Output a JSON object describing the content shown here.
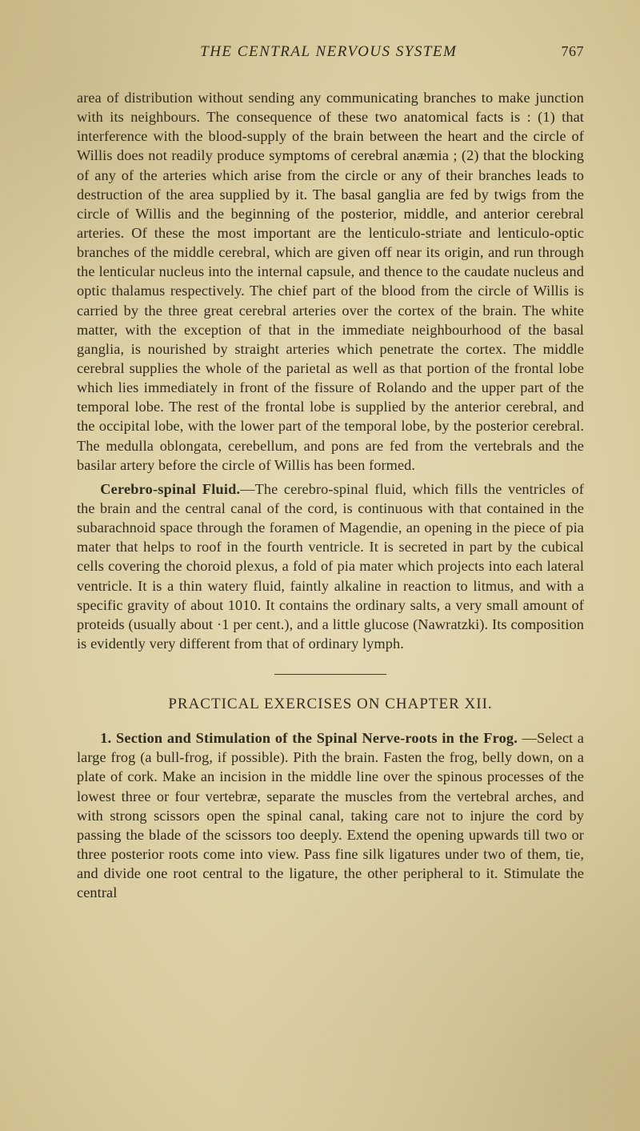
{
  "page": {
    "runningTitle": "THE CENTRAL NERVOUS SYSTEM",
    "pageNumber": "767",
    "paragraph1": "area of distribution without sending any communicating branches to make junction with its neighbours. The consequence of these two anatomical facts is : (1) that interference with the blood-supply of the brain between the heart and the circle of Willis does not readily produce symptoms of cerebral anæmia ; (2) that the blocking of any of the arteries which arise from the circle or any of their branches leads to destruction of the area supplied by it. The basal ganglia are fed by twigs from the circle of Willis and the beginning of the posterior, middle, and anterior cerebral arteries. Of these the most important are the lenticulo-striate and lenticulo-optic branches of the middle cerebral, which are given off near its origin, and run through the lenticular nucleus into the internal capsule, and thence to the caudate nucleus and optic thalamus respectively. The chief part of the blood from the circle of Willis is carried by the three great cerebral arteries over the cortex of the brain. The white matter, with the exception of that in the immediate neighbourhood of the basal ganglia, is nourished by straight arteries which penetrate the cortex. The middle cerebral supplies the whole of the parietal as well as that portion of the frontal lobe which lies immediately in front of the fissure of Rolando and the upper part of the temporal lobe. The rest of the frontal lobe is supplied by the anterior cerebral, and the occipital lobe, with the lower part of the temporal lobe, by the posterior cerebral. The medulla oblongata, cerebellum, and pons are fed from the vertebrals and the basilar artery before the circle of Willis has been formed.",
    "paragraph2RunIn": "Cerebro-spinal Fluid.",
    "paragraph2Rest": "—The cerebro-spinal fluid, which fills the ventricles of the brain and the central canal of the cord, is continuous with that contained in the subarachnoid space through the foramen of Magendie, an opening in the piece of pia mater that helps to roof in the fourth ventricle. It is secreted in part by the cubical cells covering the choroid plexus, a fold of pia mater which projects into each lateral ventricle. It is a thin watery fluid, faintly alkaline in reaction to litmus, and with a specific gravity of about 1010. It contains the ordinary salts, a very small amount of proteids (usually about ·1 per cent.), and a little glucose (Nawratzki). Its composition is evidently very different from that of ordinary lymph.",
    "exerciseHeading": "PRACTICAL EXERCISES ON CHAPTER XII.",
    "exerciseRunIn": "1. Section and Stimulation of the Spinal Nerve-roots in the Frog.",
    "exerciseRest": " —Select a large frog (a bull-frog, if possible). Pith the brain. Fasten the frog, belly down, on a plate of cork. Make an incision in the middle line over the spinous processes of the lowest three or four vertebræ, separate the muscles from the vertebral arches, and with strong scissors open the spinal canal, taking care not to injure the cord by passing the blade of the scissors too deeply. Extend the opening upwards till two or three posterior roots come into view. Pass fine silk ligatures under two of them, tie, and divide one root central to the ligature, the other peripheral to it. Stimulate the central"
  }
}
